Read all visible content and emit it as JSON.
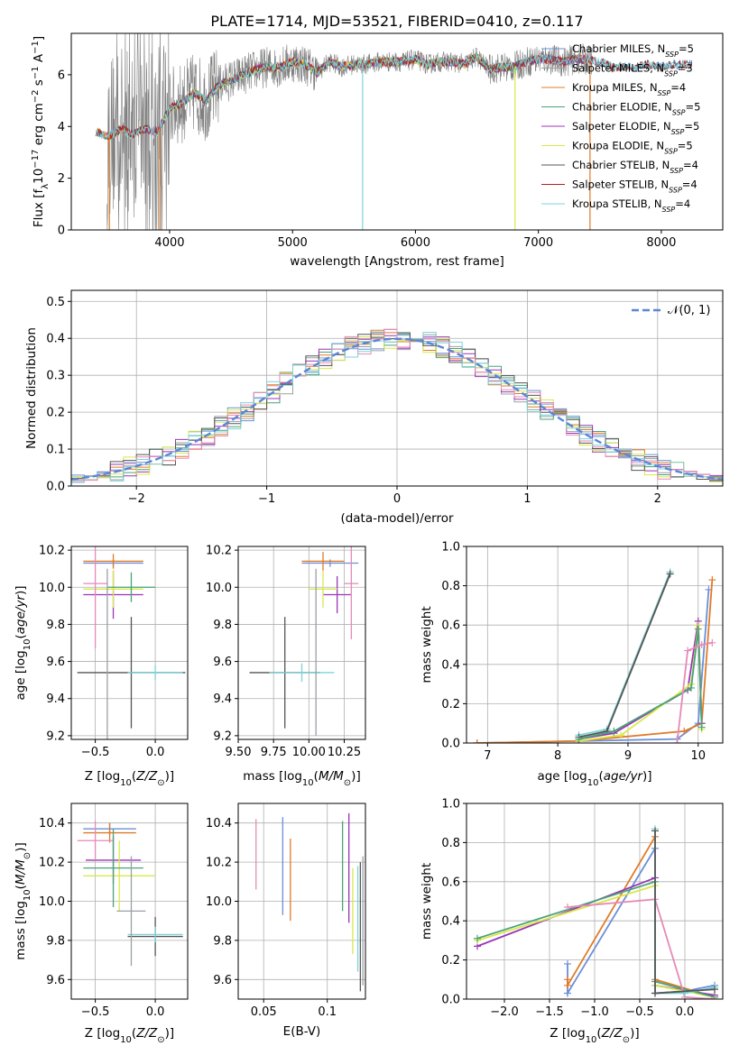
{
  "figure": {
    "title": "PLATE=1714, MJD=53521, FIBERID=0410, z=0.117"
  },
  "models": [
    {
      "name": "Chabrier MILES, N$_{SSP}$=5",
      "label_main": "Chabrier MILES, N",
      "label_sub": "SSP",
      "label_tail": "=5",
      "color": "#6a8fd8"
    },
    {
      "name": "Salpeter MILES",
      "label_main": "Salpeter MILES, N",
      "label_sub": "SSP",
      "label_tail": "=3",
      "color": "#9aa0a6"
    },
    {
      "name": "Kroupa MILES",
      "label_main": "Kroupa MILES, N",
      "label_sub": "SSP",
      "label_tail": "=4",
      "color": "#e07b28"
    },
    {
      "name": "Chabrier ELODIE",
      "label_main": "Chabrier ELODIE, N",
      "label_sub": "SSP",
      "label_tail": "=5",
      "color": "#4aa377"
    },
    {
      "name": "Salpeter ELODIE",
      "label_main": "Salpeter ELODIE, N",
      "label_sub": "SSP",
      "label_tail": "=5",
      "color": "#9b35b5"
    },
    {
      "name": "Kroupa ELODIE",
      "label_main": "Kroupa ELODIE, N",
      "label_sub": "SSP",
      "label_tail": "=5",
      "color": "#d9e84a"
    },
    {
      "name": "Chabrier STELIB",
      "label_main": "Chabrier STELIB, N",
      "label_sub": "SSP",
      "label_tail": "=4",
      "color": "#555555"
    },
    {
      "name": "Salpeter STELIB",
      "label_main": "Salpeter STELIB, N",
      "label_sub": "SSP",
      "label_tail": "=4",
      "color": "#b22222"
    },
    {
      "name": "Kroupa STELIB",
      "label_main": "Kroupa STELIB, N",
      "label_sub": "SSP",
      "label_tail": "=4",
      "color": "#7dd3d8"
    }
  ],
  "chart_data": [
    {
      "id": "spectrum",
      "type": "line",
      "xlabel": "wavelength [Angstrom, rest frame]",
      "ylabel": "Flux [f_λ 10^-17 erg cm^-2 s^-1 A^-1]",
      "xlim": [
        3200,
        8500
      ],
      "ylim": [
        0,
        7.6
      ],
      "xticks": [
        4000,
        5000,
        6000,
        7000,
        8000
      ],
      "yticks": [
        0,
        2,
        4,
        6
      ],
      "legend": "upper right",
      "spectrum": {
        "x": [
          3400,
          3500,
          3600,
          3700,
          3800,
          3900,
          4000,
          4100,
          4200,
          4300,
          4400,
          4500,
          4600,
          4700,
          4800,
          4900,
          5000,
          5100,
          5200,
          5300,
          5400,
          5500,
          5600,
          5700,
          5800,
          5900,
          6000,
          6100,
          6200,
          6300,
          6400,
          6500,
          6600,
          6700,
          6800,
          6900,
          7000,
          7100,
          7200,
          7300,
          7400,
          7500,
          7600,
          7700,
          7800,
          7900,
          8000,
          8100,
          8200
        ],
        "y": [
          3.8,
          3.6,
          3.9,
          3.7,
          3.9,
          3.8,
          4.7,
          4.9,
          5.3,
          5.0,
          5.6,
          5.8,
          6.0,
          6.2,
          6.3,
          6.3,
          6.5,
          6.4,
          6.1,
          6.5,
          6.3,
          6.4,
          6.4,
          6.5,
          6.5,
          6.5,
          6.6,
          6.4,
          6.5,
          6.5,
          6.4,
          6.7,
          6.2,
          6.3,
          6.3,
          6.5,
          6.6,
          6.6,
          6.5,
          6.6,
          6.6,
          6.5,
          6.3,
          6.3,
          6.3,
          6.4,
          6.3,
          6.4,
          6.4
        ]
      }
    },
    {
      "id": "residuals",
      "type": "step",
      "xlabel": "(data-model)/error",
      "ylabel": "Normed distribution",
      "xlim": [
        -2.5,
        2.5
      ],
      "ylim": [
        0,
        0.53
      ],
      "xticks": [
        -2,
        -1,
        0,
        1,
        2
      ],
      "yticks": [
        0.0,
        0.1,
        0.2,
        0.3,
        0.4,
        0.5
      ],
      "legend_label": "𝒩(0, 1)",
      "legend": "upper right",
      "gaussian": {
        "mu": 0,
        "sigma": 1
      }
    },
    {
      "id": "age_vs_Z",
      "type": "errorbar",
      "xlabel": "Z [log10(Z/Z☉)]",
      "ylabel": "age [log10(age/yr)]",
      "xlim": [
        -0.7,
        0.27
      ],
      "ylim": [
        9.18,
        10.22
      ],
      "xticks": [
        -0.5,
        0.0
      ],
      "yticks": [
        9.2,
        9.4,
        9.6,
        9.8,
        10.0,
        10.2
      ],
      "points": [
        {
          "m": 0,
          "x": -0.35,
          "y": 10.13,
          "xerr": 0.25,
          "yerr": 0.02
        },
        {
          "m": 2,
          "x": -0.35,
          "y": 10.14,
          "xerr": 0.25,
          "yerr": 0.04
        },
        {
          "m": 4,
          "x": -0.35,
          "y": 9.96,
          "xerr": 0.25,
          "yerr": 0.13
        },
        {
          "m": 5,
          "x": -0.35,
          "y": 9.99,
          "xerr": 0.25,
          "yerr": 0.1
        },
        {
          "m": 7,
          "x": -0.5,
          "y": 10.02,
          "xerr": 0.1,
          "yerr": 0.35
        },
        {
          "m": 3,
          "x": -0.2,
          "y": 10.0,
          "xerr": 0.2,
          "yerr": 0.08
        },
        {
          "m": 6,
          "x": -0.2,
          "y": 9.54,
          "xerr": 0.45,
          "yerr": 0.3
        },
        {
          "m": 8,
          "x": 0.0,
          "y": 9.54,
          "xerr": 0.23,
          "yerr": 0.04
        },
        {
          "m": 1,
          "x": -0.4,
          "y": 9.6,
          "xerr": 0.0,
          "yerr": 0.5
        }
      ]
    },
    {
      "id": "age_vs_mass",
      "type": "errorbar",
      "xlabel": "mass [log10(M/M☉)]",
      "ylabel": "",
      "xlim": [
        9.5,
        10.4
      ],
      "ylim": [
        9.18,
        10.22
      ],
      "xticks": [
        9.5,
        9.75,
        10.0,
        10.25
      ],
      "yticks": [
        9.2,
        9.4,
        9.6,
        9.8,
        10.0,
        10.2
      ],
      "points": [
        {
          "m": 0,
          "x": 10.15,
          "y": 10.13,
          "xerr": 0.2,
          "yerr": 0.02
        },
        {
          "m": 2,
          "x": 10.1,
          "y": 10.14,
          "xerr": 0.15,
          "yerr": 0.05
        },
        {
          "m": 4,
          "x": 10.2,
          "y": 9.96,
          "xerr": 0.1,
          "yerr": 0.1
        },
        {
          "m": 5,
          "x": 10.1,
          "y": 9.99,
          "xerr": 0.1,
          "yerr": 0.1
        },
        {
          "m": 7,
          "x": 10.3,
          "y": 10.02,
          "xerr": 0.05,
          "yerr": 0.3
        },
        {
          "m": 6,
          "x": 9.83,
          "y": 9.54,
          "xerr": 0.25,
          "yerr": 0.3
        },
        {
          "m": 8,
          "x": 9.95,
          "y": 9.54,
          "xerr": 0.23,
          "yerr": 0.05
        },
        {
          "m": 1,
          "x": 10.05,
          "y": 9.65,
          "xerr": 0.0,
          "yerr": 0.45
        }
      ]
    },
    {
      "id": "massweight_vs_age",
      "type": "line",
      "xlabel": "age [log10(age/yr)]",
      "ylabel": "mass weight",
      "xlim": [
        6.7,
        10.35
      ],
      "ylim": [
        0,
        1.0
      ],
      "xticks": [
        7,
        8,
        9,
        10
      ],
      "yticks": [
        0.0,
        0.2,
        0.4,
        0.6,
        0.8,
        1.0
      ],
      "series": [
        {
          "m": 8,
          "x": [
            8.3,
            8.7,
            9.6
          ],
          "y": [
            0.04,
            0.07,
            0.87
          ]
        },
        {
          "m": 6,
          "x": [
            8.3,
            8.7,
            9.6
          ],
          "y": [
            0.03,
            0.06,
            0.86
          ]
        },
        {
          "m": 0,
          "x": [
            6.85,
            8.3,
            9.7,
            10.0,
            10.15
          ],
          "y": [
            0.0,
            0.01,
            0.02,
            0.1,
            0.78
          ]
        },
        {
          "m": 2,
          "x": [
            6.85,
            8.3,
            9.8,
            10.05,
            10.2
          ],
          "y": [
            0.0,
            0.01,
            0.06,
            0.1,
            0.83
          ]
        },
        {
          "m": 4,
          "x": [
            8.3,
            8.8,
            9.85,
            10.0,
            10.05
          ],
          "y": [
            0.02,
            0.05,
            0.27,
            0.62,
            0.1
          ]
        },
        {
          "m": 5,
          "x": [
            8.3,
            8.9,
            9.9,
            10.0,
            10.05
          ],
          "y": [
            0.01,
            0.04,
            0.3,
            0.6,
            0.07
          ]
        },
        {
          "m": 3,
          "x": [
            8.3,
            8.8,
            9.9,
            10.0,
            10.05
          ],
          "y": [
            0.02,
            0.06,
            0.28,
            0.58,
            0.08
          ]
        },
        {
          "m": 7,
          "x": [
            9.7,
            9.85,
            10.05,
            10.2
          ],
          "y": [
            0.0,
            0.47,
            0.5,
            0.51
          ]
        }
      ]
    },
    {
      "id": "mass_vs_Z",
      "type": "errorbar",
      "xlabel": "Z [log10(Z/Z☉)]",
      "ylabel": "mass [log10(M/M☉)]",
      "xlim": [
        -0.7,
        0.27
      ],
      "ylim": [
        9.5,
        10.5
      ],
      "xticks": [
        -0.5,
        0.0
      ],
      "yticks": [
        9.6,
        9.8,
        10.0,
        10.2,
        10.4
      ],
      "points": [
        {
          "m": 0,
          "x": -0.38,
          "y": 10.37,
          "xerr": 0.22,
          "yerr": 0.03
        },
        {
          "m": 2,
          "x": -0.38,
          "y": 10.35,
          "xerr": 0.22,
          "yerr": 0.05
        },
        {
          "m": 4,
          "x": -0.35,
          "y": 10.21,
          "xerr": 0.23,
          "yerr": 0.12
        },
        {
          "m": 5,
          "x": -0.3,
          "y": 10.13,
          "xerr": 0.3,
          "yerr": 0.18
        },
        {
          "m": 7,
          "x": -0.5,
          "y": 10.31,
          "xerr": 0.15,
          "yerr": 0.1
        },
        {
          "m": 3,
          "x": -0.35,
          "y": 10.17,
          "xerr": 0.25,
          "yerr": 0.2
        },
        {
          "m": 6,
          "x": 0.0,
          "y": 9.82,
          "xerr": 0.23,
          "yerr": 0.1
        },
        {
          "m": 8,
          "x": 0.0,
          "y": 9.83,
          "xerr": 0.23,
          "yerr": 0.04
        },
        {
          "m": 1,
          "x": -0.2,
          "y": 9.95,
          "xerr": 0.12,
          "yerr": 0.28
        }
      ]
    },
    {
      "id": "mass_vs_ebv",
      "type": "errorbar",
      "xlabel": "E(B-V)",
      "ylabel": "",
      "xlim": [
        0.03,
        0.13
      ],
      "ylim": [
        9.5,
        10.5
      ],
      "xticks": [
        0.05,
        0.1
      ],
      "yticks": [
        9.6,
        9.8,
        10.0,
        10.2,
        10.4
      ],
      "points": [
        {
          "m": 7,
          "x": 0.044,
          "y": 10.24,
          "yerr": 0.18
        },
        {
          "m": 0,
          "x": 0.065,
          "y": 10.18,
          "yerr": 0.25
        },
        {
          "m": 2,
          "x": 0.071,
          "y": 10.11,
          "yerr": 0.21
        },
        {
          "m": 3,
          "x": 0.112,
          "y": 10.18,
          "yerr": 0.23
        },
        {
          "m": 4,
          "x": 0.117,
          "y": 10.17,
          "yerr": 0.28
        },
        {
          "m": 5,
          "x": 0.12,
          "y": 9.95,
          "yerr": 0.22
        },
        {
          "m": 8,
          "x": 0.124,
          "y": 9.91,
          "yerr": 0.27
        },
        {
          "m": 6,
          "x": 0.126,
          "y": 9.87,
          "yerr": 0.33
        },
        {
          "m": 1,
          "x": 0.128,
          "y": 9.9,
          "yerr": 0.33
        }
      ]
    },
    {
      "id": "massweight_vs_Z",
      "type": "line",
      "xlabel": "Z [log10(Z/Z☉)]",
      "ylabel": "mass weight",
      "xlim": [
        -2.42,
        0.42
      ],
      "ylim": [
        0,
        1.0
      ],
      "xticks": [
        -2.0,
        -1.5,
        -1.0,
        -0.5,
        0.0
      ],
      "yticks": [
        0.0,
        0.2,
        0.4,
        0.6,
        0.8,
        1.0
      ],
      "series": [
        {
          "m": 0,
          "x": [
            -1.3,
            -1.3,
            -0.33,
            -0.33,
            0.0,
            0.33
          ],
          "y": [
            0.18,
            0.03,
            0.77,
            0.03,
            0.04,
            0.07
          ]
        },
        {
          "m": 2,
          "x": [
            -1.3,
            -1.3,
            -0.33,
            -0.33,
            0.33
          ],
          "y": [
            0.1,
            0.07,
            0.83,
            0.1,
            0.01
          ]
        },
        {
          "m": 4,
          "x": [
            -2.3,
            -0.33,
            -0.33,
            0.33
          ],
          "y": [
            0.27,
            0.62,
            0.07,
            0.02
          ]
        },
        {
          "m": 5,
          "x": [
            -2.3,
            -0.33,
            -0.33,
            0.33
          ],
          "y": [
            0.3,
            0.58,
            0.07,
            0.01
          ]
        },
        {
          "m": 3,
          "x": [
            -2.3,
            -0.33,
            -0.33,
            0.33
          ],
          "y": [
            0.31,
            0.6,
            0.09,
            0.01
          ]
        },
        {
          "m": 7,
          "x": [
            -1.3,
            -0.33,
            0.0,
            0.33
          ],
          "y": [
            0.47,
            0.51,
            0.01,
            0.0
          ]
        },
        {
          "m": 8,
          "x": [
            -0.33,
            -0.33,
            0.0,
            0.33
          ],
          "y": [
            0.87,
            0.03,
            0.03,
            0.06
          ]
        },
        {
          "m": 6,
          "x": [
            -0.33,
            -0.33,
            0.33
          ],
          "y": [
            0.86,
            0.03,
            0.05
          ]
        }
      ]
    }
  ]
}
